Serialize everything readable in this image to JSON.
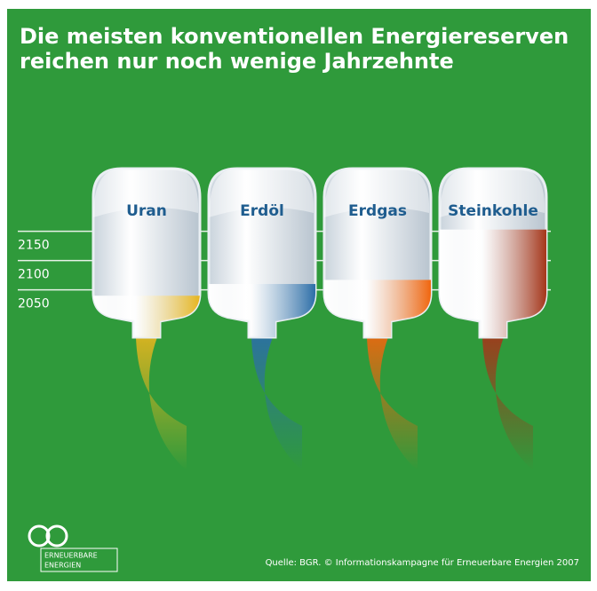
{
  "chart_data": {
    "type": "bar",
    "title": [
      "Die meisten konventionellen Energiereserven",
      "reichen nur noch wenige Jahrzehnte"
    ],
    "categories": [
      "Uran",
      "Erdöl",
      "Erdgas",
      "Steinkohle"
    ],
    "values": [
      2040,
      2060,
      2067,
      2153
    ],
    "colors": [
      "#e6b51e",
      "#2c6ea8",
      "#f0660e",
      "#a5361a"
    ],
    "ylim": [
      2007,
      2245
    ],
    "yticks": [
      2050,
      2100,
      2150
    ],
    "grid": true,
    "logo_text": [
      "ERNEUERBARE",
      "ENERGIEN"
    ],
    "source": "Quelle: BGR. © Informationskampagne für Erneuerbare Energien 2007"
  }
}
